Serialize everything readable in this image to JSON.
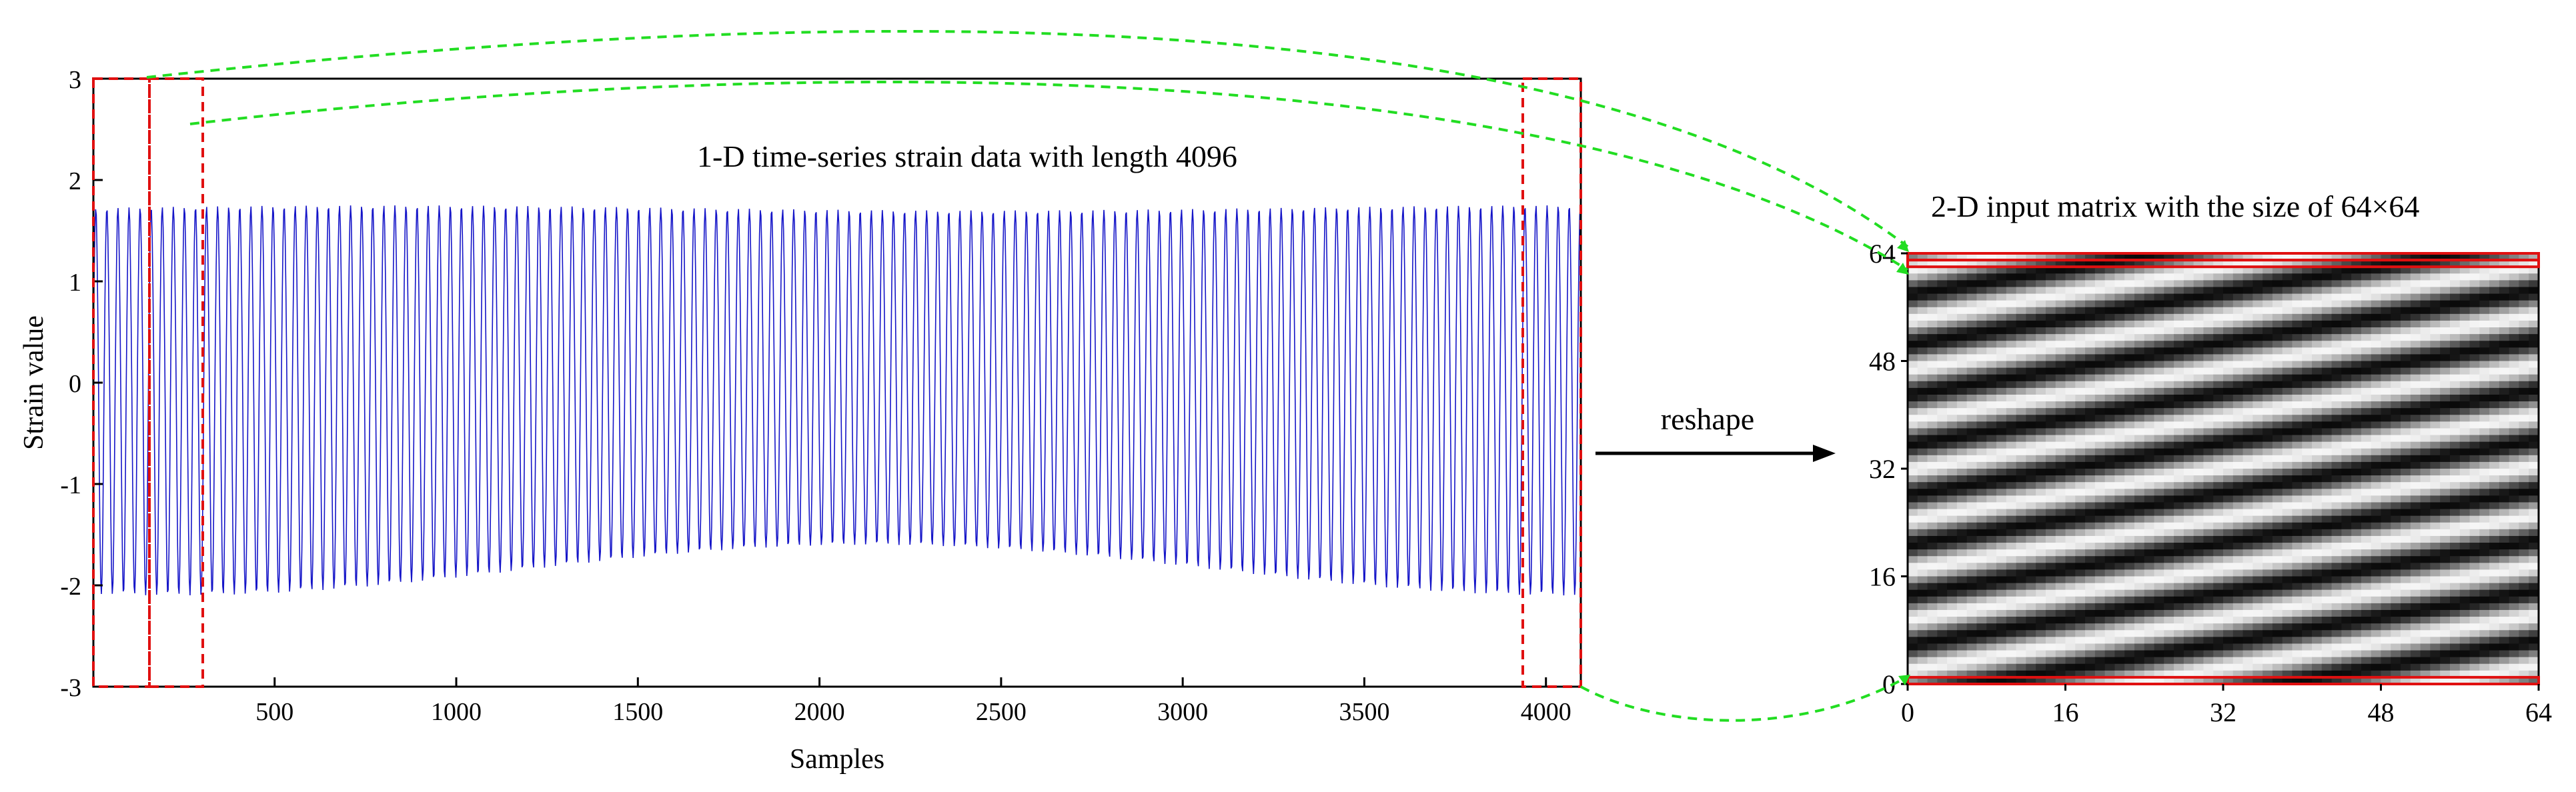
{
  "left_chart": {
    "title": "1-D time-series strain data with length 4096",
    "xlabel": "Samples",
    "ylabel": "Strain value",
    "x_ticks": [
      "500",
      "1000",
      "1500",
      "2000",
      "2500",
      "3000",
      "3500",
      "4000"
    ],
    "y_ticks": [
      "3",
      "2",
      "1",
      "0",
      "-1",
      "-2",
      "-3"
    ],
    "line_color": "#1515c8",
    "highlight_color": "#e01010"
  },
  "arrow": {
    "label": "reshape"
  },
  "right_matrix": {
    "title": "2-D input matrix with the size of 64×64",
    "x_ticks": [
      "0",
      "16",
      "32",
      "48",
      "64"
    ],
    "y_ticks": [
      "64",
      "48",
      "32",
      "16",
      "0"
    ],
    "highlight_color": "#e01010"
  },
  "connector_color": "#22dd22",
  "chart_data": [
    {
      "type": "line",
      "title": "1-D time-series strain data with length 4096",
      "xlabel": "Samples",
      "ylabel": "Strain value",
      "xlim": [
        1,
        4096
      ],
      "ylim": [
        -3,
        3
      ],
      "x_ticks": [
        500,
        1000,
        1500,
        2000,
        2500,
        3000,
        3500,
        4000
      ],
      "y_ticks": [
        -3,
        -2,
        -1,
        0,
        1,
        2,
        3
      ],
      "approx_upper_envelope": [
        1.7,
        1.75
      ],
      "approx_lower_envelope": [
        -1.6,
        -2.1
      ],
      "highlighted_sample_ranges": [
        [
          1,
          160
        ],
        [
          160,
          320
        ],
        [
          3936,
          4096
        ]
      ]
    },
    {
      "type": "heatmap",
      "title": "2-D input matrix with the size of 64×64",
      "rows": 64,
      "cols": 64,
      "xlim": [
        0,
        64
      ],
      "ylim": [
        0,
        64
      ],
      "x_ticks": [
        0,
        16,
        32,
        48,
        64
      ],
      "y_ticks": [
        0,
        16,
        32,
        48,
        64
      ],
      "colormap": "grayscale",
      "highlighted_rows": [
        1,
        63,
        64
      ]
    }
  ]
}
